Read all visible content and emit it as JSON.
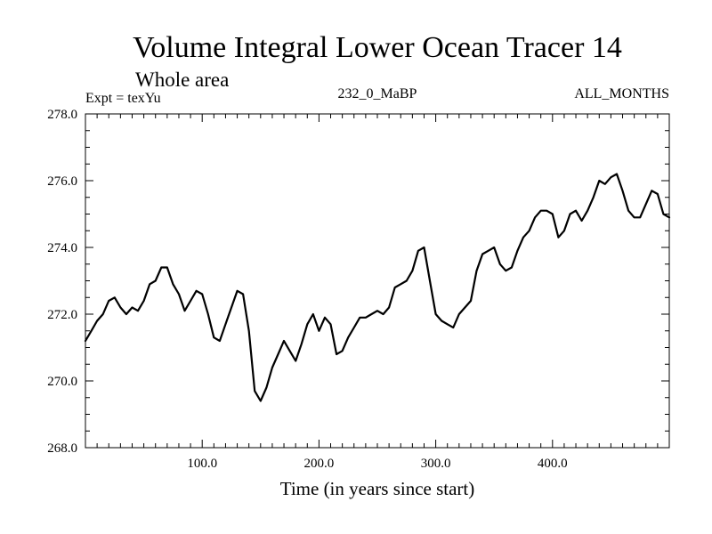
{
  "chart_data": {
    "type": "line",
    "title": "Volume Integral Lower Ocean Tracer 14",
    "subtitle": "Whole area",
    "annotations": {
      "left": "Expt = texYu",
      "center": "232_0_MaBP",
      "right": "ALL_MONTHS"
    },
    "xlabel": "Time (in years since start)",
    "ylabel": "",
    "xlim": [
      0,
      500
    ],
    "ylim": [
      268.0,
      278.0
    ],
    "x_ticks": [
      100.0,
      200.0,
      300.0,
      400.0
    ],
    "x_tick_labels": [
      "100.0",
      "200.0",
      "300.0",
      "400.0"
    ],
    "y_ticks": [
      268.0,
      270.0,
      272.0,
      274.0,
      276.0,
      278.0
    ],
    "y_tick_labels": [
      "268.0",
      "270.0",
      "272.0",
      "274.0",
      "276.0",
      "278.0"
    ],
    "grid": false,
    "legend": "none",
    "line_color": "#000000",
    "series": [
      {
        "x": [
          0,
          5,
          10,
          15,
          20,
          25,
          30,
          35,
          40,
          45,
          50,
          55,
          60,
          65,
          70,
          75,
          80,
          85,
          90,
          95,
          100,
          105,
          110,
          115,
          120,
          125,
          130,
          135,
          140,
          145,
          150,
          155,
          160,
          165,
          170,
          175,
          180,
          185,
          190,
          195,
          200,
          205,
          210,
          215,
          220,
          225,
          230,
          235,
          240,
          245,
          250,
          255,
          260,
          265,
          270,
          275,
          280,
          285,
          290,
          295,
          300,
          305,
          310,
          315,
          320,
          325,
          330,
          335,
          340,
          345,
          350,
          355,
          360,
          365,
          370,
          375,
          380,
          385,
          390,
          395,
          400,
          405,
          410,
          415,
          420,
          425,
          430,
          435,
          440,
          445,
          450,
          455,
          460,
          465,
          470,
          475,
          480,
          485,
          490,
          495,
          500
        ],
        "values": [
          271.2,
          271.5,
          271.8,
          272.0,
          272.4,
          272.5,
          272.2,
          272.0,
          272.2,
          272.1,
          272.4,
          272.9,
          273.0,
          273.4,
          273.4,
          272.9,
          272.6,
          272.1,
          272.4,
          272.7,
          272.6,
          272.0,
          271.3,
          271.2,
          271.7,
          272.2,
          272.7,
          272.6,
          271.5,
          269.7,
          269.4,
          269.8,
          270.4,
          270.8,
          271.2,
          270.9,
          270.6,
          271.1,
          271.7,
          272.0,
          271.5,
          271.9,
          271.7,
          270.8,
          270.9,
          271.3,
          271.6,
          271.9,
          271.9,
          272.0,
          272.1,
          272.0,
          272.2,
          272.8,
          272.9,
          273.0,
          273.3,
          273.9,
          274.0,
          273.0,
          272.0,
          271.8,
          271.7,
          271.6,
          272.0,
          272.2,
          272.4,
          273.3,
          273.8,
          273.9,
          274.0,
          273.5,
          273.3,
          273.4,
          273.9,
          274.3,
          274.5,
          274.9,
          275.1,
          275.1,
          275.0,
          274.3,
          274.5,
          275.0,
          275.1,
          274.8,
          275.1,
          275.5,
          276.0,
          275.9,
          276.1,
          276.2,
          275.7,
          275.1,
          274.9,
          274.9,
          275.3,
          275.7,
          275.6,
          275.0,
          274.9
        ]
      }
    ]
  }
}
